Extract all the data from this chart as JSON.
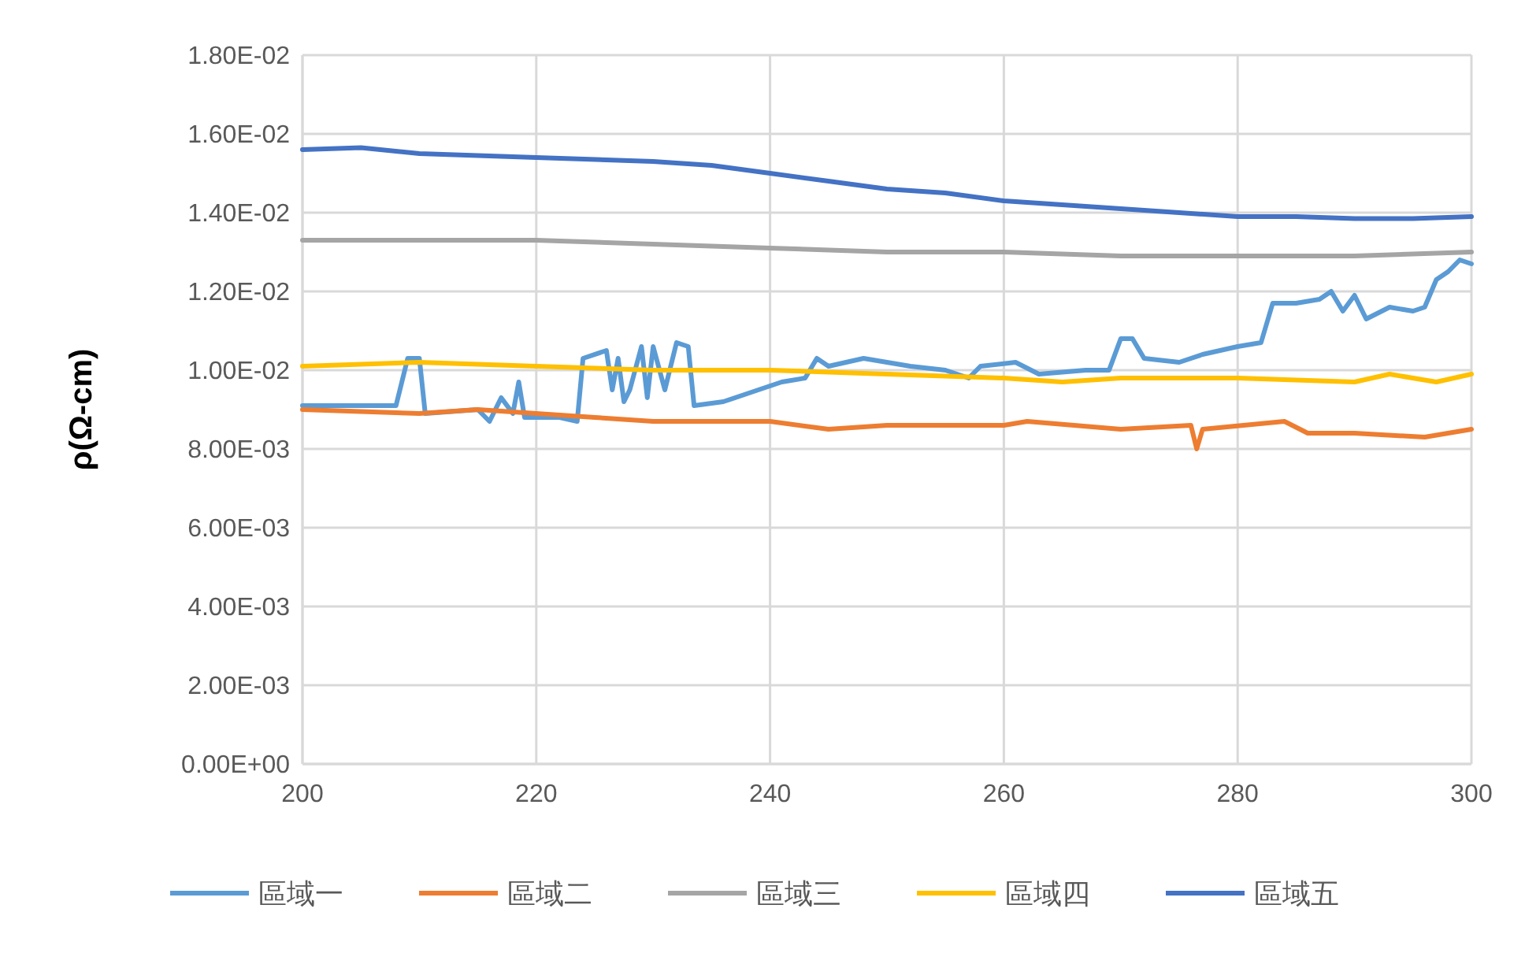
{
  "chart_data": {
    "type": "line",
    "ylabel": "ρ(Ω-cm)",
    "xlim": [
      200,
      300
    ],
    "xticks": [
      200,
      220,
      240,
      260,
      280,
      300
    ],
    "ylim": [
      0,
      0.018
    ],
    "yticks": [
      {
        "value": 0,
        "label": "0.00E+00"
      },
      {
        "value": 0.002,
        "label": "2.00E-03"
      },
      {
        "value": 0.004,
        "label": "4.00E-03"
      },
      {
        "value": 0.006,
        "label": "6.00E-03"
      },
      {
        "value": 0.008,
        "label": "8.00E-03"
      },
      {
        "value": 0.01,
        "label": "1.00E-02"
      },
      {
        "value": 0.012,
        "label": "1.20E-02"
      },
      {
        "value": 0.014,
        "label": "1.40E-02"
      },
      {
        "value": 0.016,
        "label": "1.60E-02"
      },
      {
        "value": 0.018,
        "label": "1.80E-02"
      }
    ],
    "grid": true,
    "legend": "bottom",
    "marker": "none",
    "line_style": "solid",
    "series": [
      {
        "name": "區域一",
        "color": "#5b9bd5",
        "x": [
          200,
          208,
          209,
          210,
          210.5,
          215,
          216,
          217,
          218,
          218.5,
          219,
          222,
          223.5,
          224,
          226,
          226.5,
          227,
          227.5,
          228,
          229,
          229.5,
          230,
          231,
          232,
          233,
          233.5,
          236,
          239,
          241,
          243,
          244,
          245,
          248,
          250,
          252,
          255,
          257,
          258,
          261,
          263,
          267,
          269,
          270,
          271,
          272,
          275,
          277,
          280,
          282,
          283,
          285,
          287,
          288,
          289,
          290,
          291,
          293,
          295,
          296,
          297,
          298,
          299,
          300
        ],
        "values": [
          0.0091,
          0.0091,
          0.0103,
          0.0103,
          0.0089,
          0.009,
          0.0087,
          0.0093,
          0.0089,
          0.0097,
          0.0088,
          0.0088,
          0.0087,
          0.0103,
          0.0105,
          0.0095,
          0.0103,
          0.0092,
          0.0095,
          0.0106,
          0.0093,
          0.0106,
          0.0095,
          0.0107,
          0.0106,
          0.0091,
          0.0092,
          0.0095,
          0.0097,
          0.0098,
          0.0103,
          0.0101,
          0.0103,
          0.0102,
          0.0101,
          0.01,
          0.0098,
          0.0101,
          0.0102,
          0.0099,
          0.01,
          0.01,
          0.0108,
          0.0108,
          0.0103,
          0.0102,
          0.0104,
          0.0106,
          0.0107,
          0.0117,
          0.0117,
          0.0118,
          0.012,
          0.0115,
          0.0119,
          0.0113,
          0.0116,
          0.0115,
          0.0116,
          0.0123,
          0.0125,
          0.0128,
          0.0127
        ]
      },
      {
        "name": "區域二",
        "color": "#ed7d31",
        "x": [
          200,
          210,
          215,
          220,
          225,
          230,
          240,
          245,
          250,
          260,
          262,
          270,
          276,
          276.5,
          277,
          284,
          286,
          290,
          296,
          300
        ],
        "values": [
          0.009,
          0.0089,
          0.009,
          0.0089,
          0.0088,
          0.0087,
          0.0087,
          0.0085,
          0.0086,
          0.0086,
          0.0087,
          0.0085,
          0.0086,
          0.008,
          0.0085,
          0.0087,
          0.0084,
          0.0084,
          0.0083,
          0.0085
        ]
      },
      {
        "name": "區域三",
        "color": "#a5a5a5",
        "x": [
          200,
          210,
          220,
          230,
          240,
          250,
          260,
          270,
          280,
          290,
          300
        ],
        "values": [
          0.0133,
          0.0133,
          0.0133,
          0.0132,
          0.0131,
          0.013,
          0.013,
          0.0129,
          0.0129,
          0.0129,
          0.013
        ]
      },
      {
        "name": "區域四",
        "color": "#ffc000",
        "x": [
          200,
          210,
          220,
          230,
          240,
          250,
          260,
          265,
          270,
          280,
          290,
          293,
          297,
          300
        ],
        "values": [
          0.0101,
          0.0102,
          0.0101,
          0.01,
          0.01,
          0.0099,
          0.0098,
          0.0097,
          0.0098,
          0.0098,
          0.0097,
          0.0099,
          0.0097,
          0.0099
        ]
      },
      {
        "name": "區域五",
        "color": "#4472c4",
        "x": [
          200,
          205,
          210,
          220,
          230,
          235,
          240,
          245,
          250,
          255,
          260,
          265,
          270,
          275,
          280,
          285,
          290,
          295,
          300
        ],
        "values": [
          0.0156,
          0.01565,
          0.0155,
          0.0154,
          0.0153,
          0.0152,
          0.015,
          0.0148,
          0.0146,
          0.0145,
          0.0143,
          0.0142,
          0.0141,
          0.014,
          0.0139,
          0.0139,
          0.01385,
          0.01385,
          0.0139
        ]
      }
    ]
  }
}
